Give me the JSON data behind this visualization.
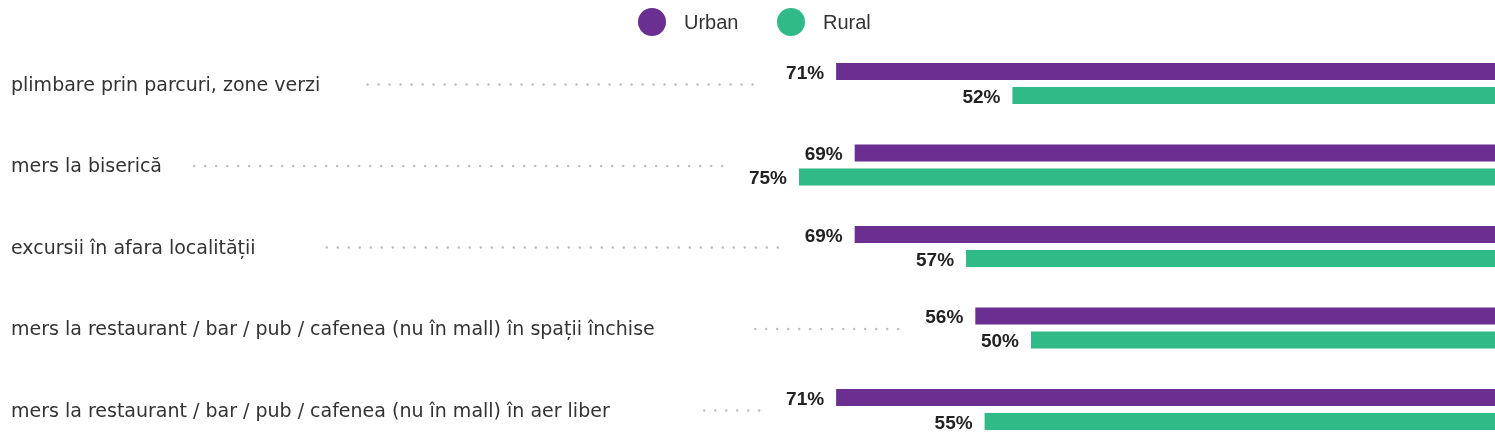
{
  "chart_data": {
    "type": "bar",
    "orientation": "horizontal",
    "categories": [
      "plimbare prin parcuri, zone verzi",
      "mers la biserică",
      "excursii în afara localității",
      "mers la restaurant / bar / pub / cafenea (nu în mall) în spații închise",
      "mers la restaurant / bar / pub / cafenea (nu în mall) în aer liber"
    ],
    "series": [
      {
        "name": "Urban",
        "color": "#6a2f91",
        "values": [
          71,
          69,
          69,
          56,
          71
        ],
        "value_labels": [
          "71%",
          "69%",
          "69%",
          "56%",
          "71%"
        ]
      },
      {
        "name": "Rural",
        "color": "#2fba88",
        "values": [
          52,
          75,
          57,
          50,
          55
        ],
        "value_labels": [
          "52%",
          "75%",
          "57%",
          "50%",
          "55%"
        ]
      }
    ],
    "legend": "top"
  }
}
